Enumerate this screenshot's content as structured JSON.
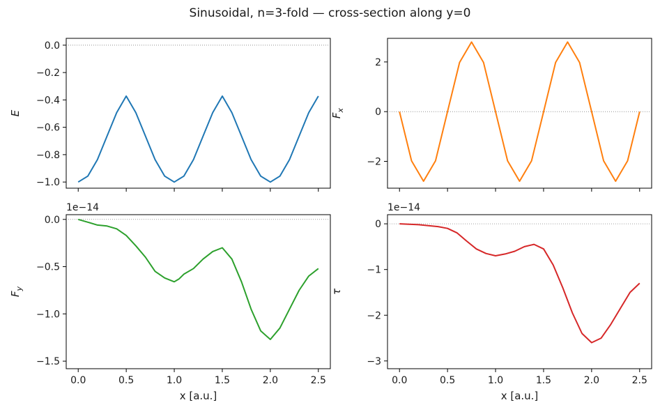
{
  "figure": {
    "title": "Sinusoidal, n=3-fold — cross-section along y=0"
  },
  "chart_data": [
    {
      "type": "line",
      "id": "energy",
      "ylabel": "E",
      "xlabel": "",
      "color": "#1f77b4",
      "xlim": [
        -0.125,
        2.625
      ],
      "ylim": [
        -1.045,
        0.05
      ],
      "xticks": [
        0.0,
        0.5,
        1.0,
        1.5,
        2.0,
        2.5
      ],
      "xticklabels": [],
      "yticks": [
        0.0,
        -0.2,
        -0.4,
        -0.6,
        -0.8,
        -1.0
      ],
      "yticklabels": [
        "0.0",
        "−0.2",
        "−0.4",
        "−0.6",
        "−0.8",
        "−1.0"
      ],
      "offset_text": "",
      "zero_line": true,
      "x": [
        0.0,
        0.1,
        0.2,
        0.3,
        0.4,
        0.5,
        0.6,
        0.7,
        0.8,
        0.9,
        1.0,
        1.1,
        1.2,
        1.3,
        1.4,
        1.5,
        1.6,
        1.7,
        1.8,
        1.9,
        2.0,
        2.1,
        2.2,
        2.3,
        2.4,
        2.5
      ],
      "values": [
        -1.0,
        -0.957,
        -0.836,
        -0.664,
        -0.493,
        -0.372,
        -0.493,
        -0.664,
        -0.836,
        -0.957,
        -1.0,
        -0.957,
        -0.836,
        -0.664,
        -0.493,
        -0.372,
        -0.493,
        -0.664,
        -0.836,
        -0.957,
        -1.0,
        -0.957,
        -0.836,
        -0.664,
        -0.493,
        -0.372
      ]
    },
    {
      "type": "line",
      "id": "force-x",
      "ylabel": "F_x",
      "xlabel": "",
      "color": "#ff7f0e",
      "xlim": [
        -0.125,
        2.625
      ],
      "ylim": [
        -3.08,
        2.95
      ],
      "xticks": [
        0.0,
        0.5,
        1.0,
        1.5,
        2.0,
        2.5
      ],
      "xticklabels": [],
      "yticks": [
        2,
        0,
        -2
      ],
      "yticklabels": [
        "2",
        "0",
        "−2"
      ],
      "offset_text": "",
      "zero_line": true,
      "x": [
        0.0,
        0.125,
        0.25,
        0.375,
        0.5,
        0.625,
        0.75,
        0.875,
        1.0,
        1.125,
        1.25,
        1.375,
        1.5,
        1.625,
        1.75,
        1.875,
        2.0,
        2.125,
        2.25,
        2.375,
        2.5
      ],
      "values": [
        0.0,
        -1.98,
        -2.8,
        -1.98,
        0.0,
        1.98,
        2.8,
        1.98,
        0.0,
        -1.98,
        -2.8,
        -1.98,
        0.0,
        1.98,
        2.8,
        1.98,
        0.0,
        -1.98,
        -2.8,
        -1.98,
        0.0
      ]
    },
    {
      "type": "line",
      "id": "force-y",
      "ylabel": "F_y",
      "xlabel": "x  [a.u.]",
      "color": "#2ca02c",
      "xlim": [
        -0.125,
        2.625
      ],
      "ylim": [
        -1.58,
        0.05
      ],
      "xticks": [
        0.0,
        0.5,
        1.0,
        1.5,
        2.0,
        2.5
      ],
      "xticklabels": [
        "0.0",
        "0.5",
        "1.0",
        "1.5",
        "2.0",
        "2.5"
      ],
      "yticks": [
        0.0,
        -0.5,
        -1.0,
        -1.5
      ],
      "yticklabels": [
        "0.0",
        "−0.5",
        "−1.0",
        "−1.5"
      ],
      "offset_text": "1e−14",
      "zero_line": true,
      "x": [
        0.0,
        0.1,
        0.2,
        0.3,
        0.4,
        0.5,
        0.6,
        0.7,
        0.8,
        0.9,
        1.0,
        1.05,
        1.1,
        1.2,
        1.3,
        1.4,
        1.5,
        1.6,
        1.7,
        1.8,
        1.9,
        2.0,
        2.1,
        2.2,
        2.3,
        2.4,
        2.5
      ],
      "values": [
        0.0,
        -0.03,
        -0.06,
        -0.07,
        -0.1,
        -0.17,
        -0.28,
        -0.4,
        -0.55,
        -0.62,
        -0.66,
        -0.63,
        -0.58,
        -0.52,
        -0.42,
        -0.34,
        -0.3,
        -0.42,
        -0.66,
        -0.95,
        -1.18,
        -1.27,
        -1.15,
        -0.95,
        -0.75,
        -0.6,
        -0.52
      ]
    },
    {
      "type": "line",
      "id": "torque",
      "ylabel": "τ",
      "xlabel": "x  [a.u.]",
      "color": "#d62728",
      "xlim": [
        -0.125,
        2.625
      ],
      "ylim": [
        -3.17,
        0.2
      ],
      "xticks": [
        0.0,
        0.5,
        1.0,
        1.5,
        2.0,
        2.5
      ],
      "xticklabels": [
        "0.0",
        "0.5",
        "1.0",
        "1.5",
        "2.0",
        "2.5"
      ],
      "yticks": [
        0,
        -1,
        -2,
        -3
      ],
      "yticklabels": [
        "0",
        "−1",
        "−2",
        "−3"
      ],
      "offset_text": "1e−14",
      "zero_line": true,
      "x": [
        0.0,
        0.1,
        0.2,
        0.3,
        0.4,
        0.5,
        0.6,
        0.7,
        0.8,
        0.9,
        1.0,
        1.1,
        1.2,
        1.3,
        1.4,
        1.5,
        1.6,
        1.7,
        1.8,
        1.9,
        2.0,
        2.1,
        2.2,
        2.3,
        2.4,
        2.5
      ],
      "values": [
        0.0,
        -0.01,
        -0.02,
        -0.04,
        -0.06,
        -0.1,
        -0.2,
        -0.38,
        -0.55,
        -0.65,
        -0.7,
        -0.66,
        -0.6,
        -0.5,
        -0.45,
        -0.55,
        -0.9,
        -1.4,
        -1.95,
        -2.4,
        -2.6,
        -2.5,
        -2.2,
        -1.85,
        -1.5,
        -1.3
      ]
    }
  ]
}
